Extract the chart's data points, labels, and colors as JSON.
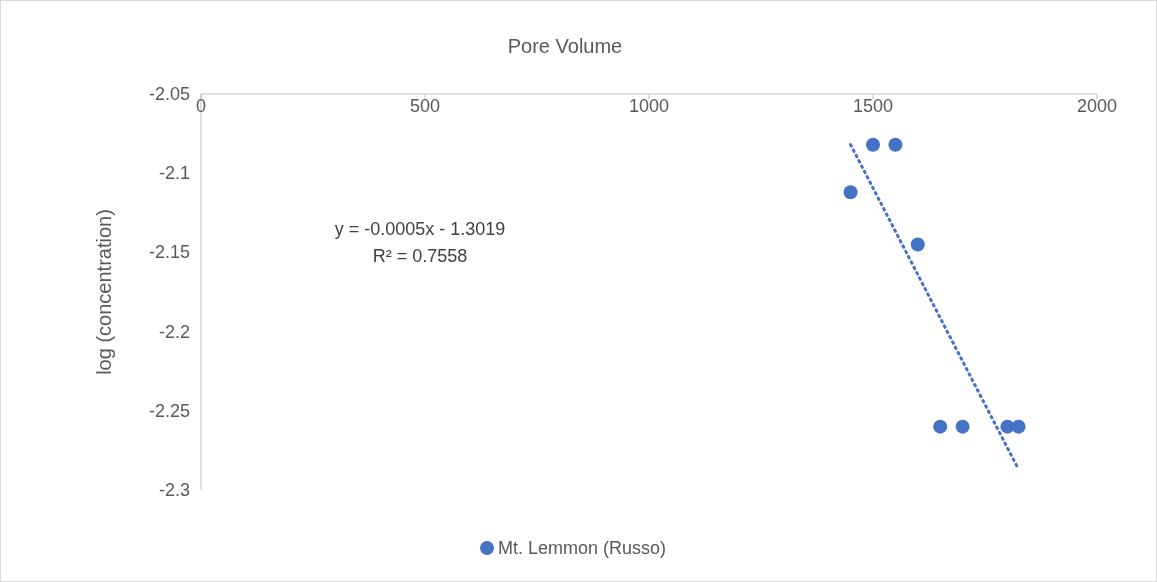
{
  "chart_data": {
    "type": "scatter",
    "xlabel": "Pore Volume",
    "ylabel": "log (concentration)",
    "xlim": [
      0,
      2000
    ],
    "xticks": [
      0,
      500,
      1000,
      1500,
      2000
    ],
    "ylim": [
      -2.3,
      -2.05
    ],
    "yticks": [
      -2.05,
      -2.1,
      -2.15,
      -2.2,
      -2.25,
      -2.3
    ],
    "series": [
      {
        "name": "Mt. Lemmon (Russo)",
        "color": "#4472c4",
        "marker": "circle",
        "x": [
          1450,
          1500,
          1550,
          1600,
          1650,
          1700,
          1800,
          1825
        ],
        "values": [
          -2.112,
          -2.082,
          -2.082,
          -2.145,
          -2.26,
          -2.26,
          -2.26,
          -2.26
        ]
      },
      {
        "type": "line",
        "color": "#4472c4",
        "marker": "none",
        "line_style": "dotted",
        "x": [
          1450,
          1825
        ],
        "values": [
          -2.082,
          -2.287
        ]
      }
    ],
    "annotations": [
      "y = -0.0005x - 1.3019",
      "R² = 0.7558"
    ],
    "legend": "bottom"
  }
}
